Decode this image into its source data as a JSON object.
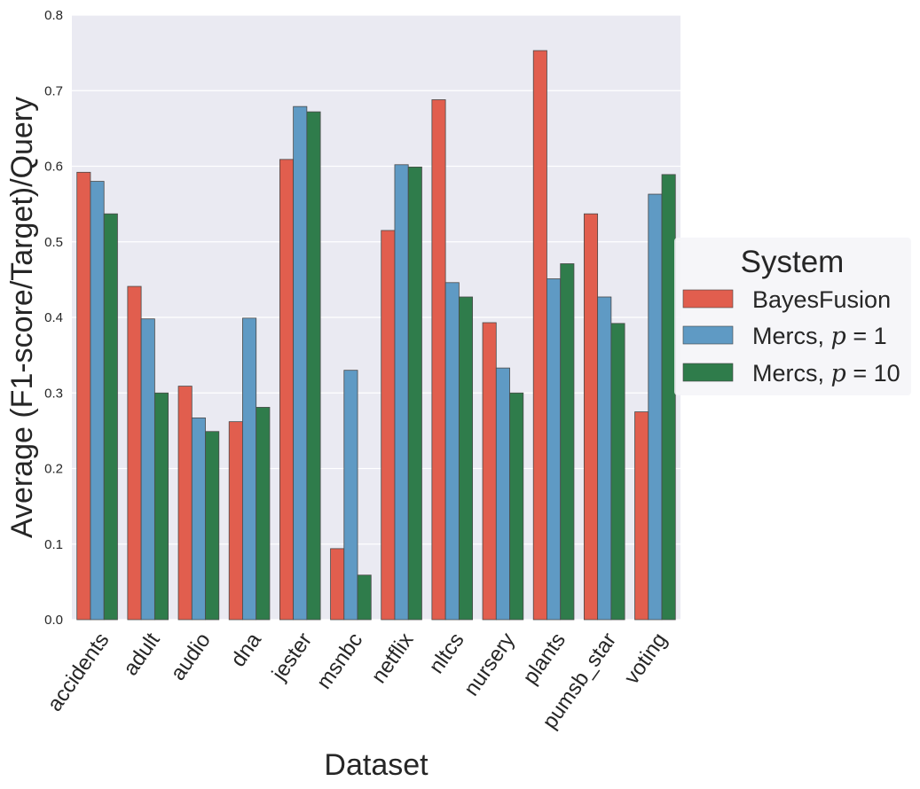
{
  "chart_data": {
    "type": "bar",
    "title": "",
    "xlabel": "Dataset",
    "ylabel": "Average (F1-score/Target)/Query",
    "ylim": [
      0,
      0.8
    ],
    "yticks": [
      "0.0",
      "0.1",
      "0.2",
      "0.3",
      "0.4",
      "0.5",
      "0.6",
      "0.7",
      "0.8"
    ],
    "categories": [
      "accidents",
      "adult",
      "audio",
      "dna",
      "jester",
      "msnbc",
      "netflix",
      "nltcs",
      "nursery",
      "plants",
      "pumsb_star",
      "voting"
    ],
    "series": [
      {
        "name": "BayesFusion",
        "label": "BayesFusion",
        "color": "#e15e4e",
        "values": [
          0.592,
          0.441,
          0.309,
          0.262,
          0.609,
          0.094,
          0.515,
          0.688,
          0.393,
          0.753,
          0.537,
          0.275
        ]
      },
      {
        "name": "Mercs, p=1",
        "label_prefix": "Mercs, ",
        "label_var": "p",
        "label_eq": " = ",
        "label_num": "1",
        "color": "#5f9ac4",
        "values": [
          0.58,
          0.398,
          0.267,
          0.399,
          0.679,
          0.33,
          0.602,
          0.446,
          0.333,
          0.451,
          0.427,
          0.563
        ]
      },
      {
        "name": "Mercs, p=10",
        "label_prefix": "Mercs, ",
        "label_var": "p",
        "label_eq": " = ",
        "label_num": "10",
        "color": "#2f7c4b",
        "values": [
          0.537,
          0.3,
          0.249,
          0.281,
          0.672,
          0.059,
          0.599,
          0.427,
          0.3,
          0.471,
          0.392,
          0.589
        ]
      }
    ],
    "grid": true,
    "legend": {
      "title": "System",
      "placement": "right"
    }
  }
}
